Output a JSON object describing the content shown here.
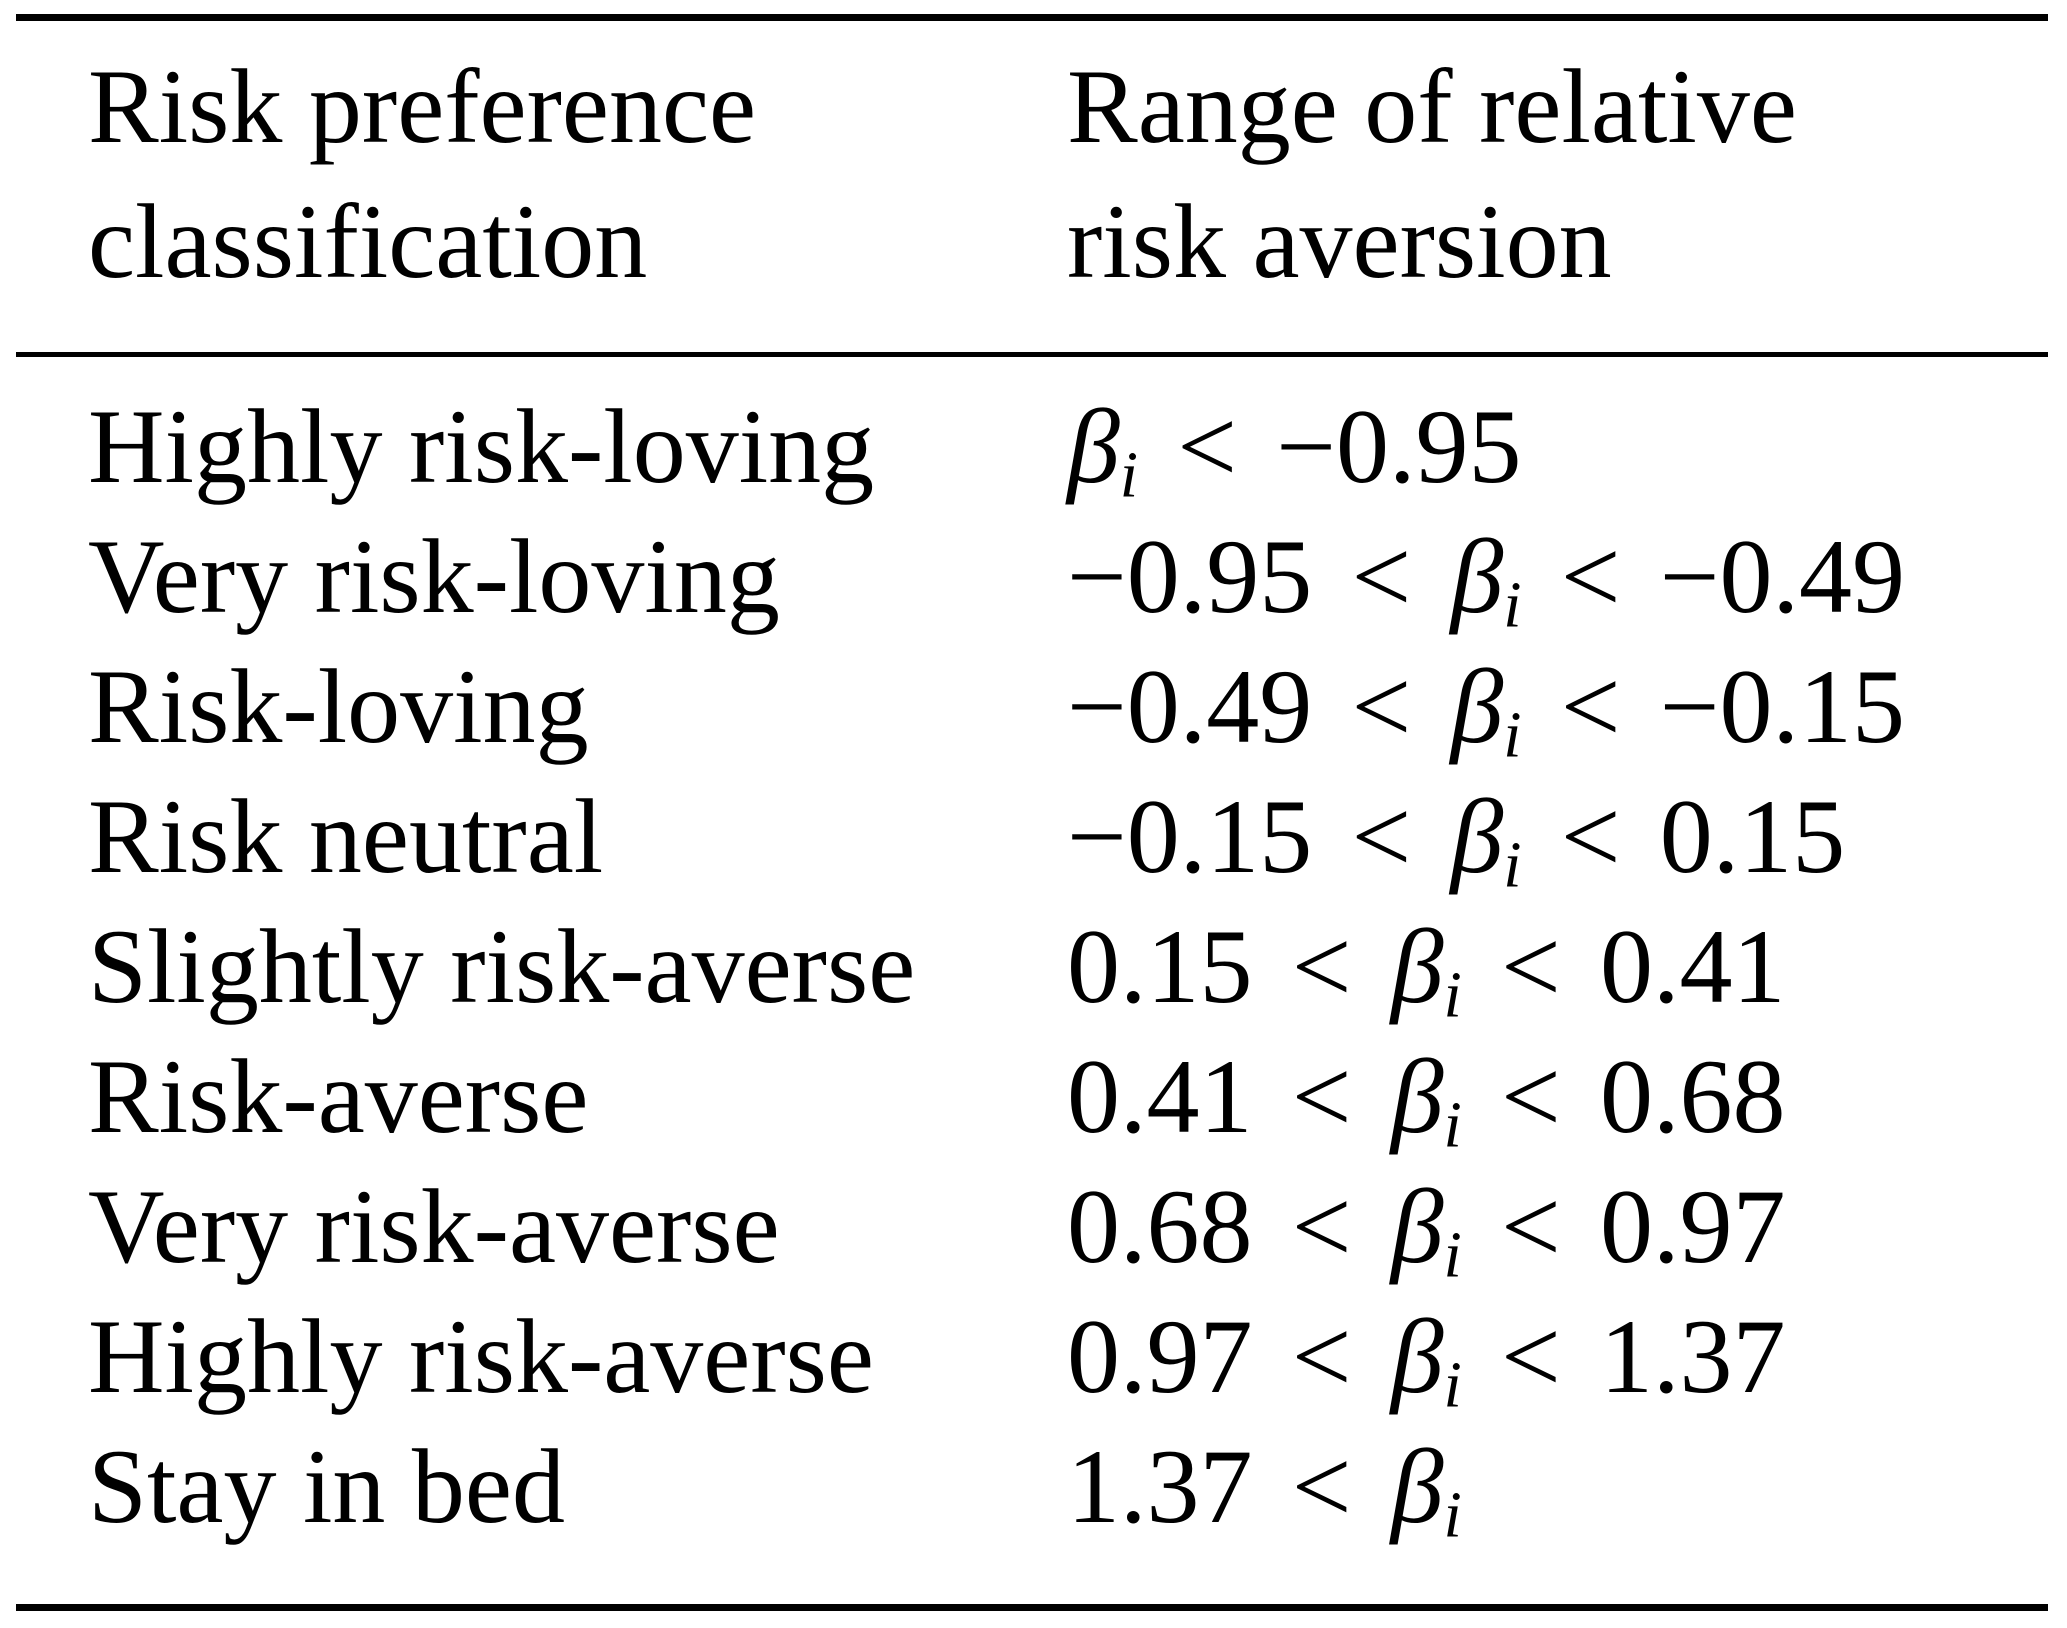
{
  "page": {
    "background_color": "#ffffff",
    "text_color": "#000000"
  },
  "table": {
    "header": {
      "col1": [
        "Risk preference",
        "classification"
      ],
      "col2": [
        "Range of relative",
        "risk aversion"
      ]
    },
    "math": {
      "variable": "β",
      "subscript": "i",
      "relation": "<"
    },
    "rows": [
      {
        "classification": "Highly risk-loving",
        "lower": null,
        "upper": "−0.95"
      },
      {
        "classification": "Very risk-loving",
        "lower": "−0.95",
        "upper": "−0.49"
      },
      {
        "classification": "Risk-loving",
        "lower": "−0.49",
        "upper": "−0.15"
      },
      {
        "classification": "Risk neutral",
        "lower": "−0.15",
        "upper": "0.15"
      },
      {
        "classification": "Slightly risk-averse",
        "lower": "0.15",
        "upper": "0.41"
      },
      {
        "classification": "Risk-averse",
        "lower": "0.41",
        "upper": "0.68"
      },
      {
        "classification": "Very risk-averse",
        "lower": "0.68",
        "upper": "0.97"
      },
      {
        "classification": "Highly risk-averse",
        "lower": "0.97",
        "upper": "1.37"
      },
      {
        "classification": "Stay in bed",
        "lower": "1.37",
        "upper": null
      }
    ]
  }
}
